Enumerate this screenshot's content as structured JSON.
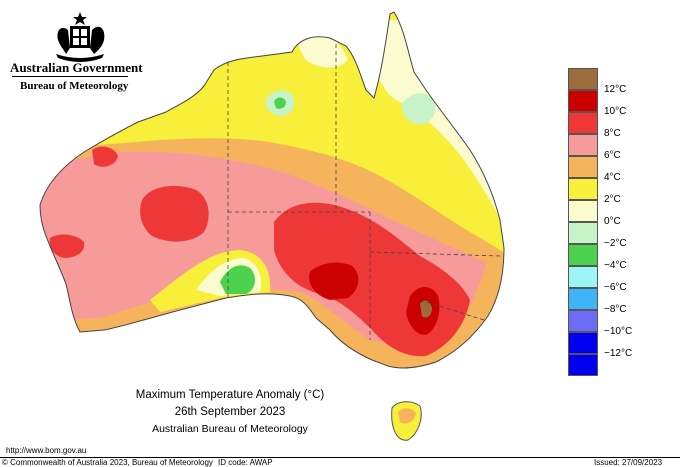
{
  "branding": {
    "government": "Australian Government",
    "bureau": "Bureau of Meteorology"
  },
  "map": {
    "title": "Maximum Temperature Anomaly (°C)",
    "date": "26th September 2023",
    "source": "Australian Bureau of Meteorology",
    "colors": {
      "above12": "#9c6c3c",
      "c10": "#cc0000",
      "c8": "#ee3838",
      "c6": "#f79a9a",
      "c4": "#f5b45c",
      "c2": "#f7ef3a",
      "c0": "#fbfbd0",
      "cm2": "#c8f2c8",
      "cm4": "#4cd24c",
      "cm6": "#9cf5f5",
      "cm8": "#3cb4f5",
      "cm10": "#6c6cf5",
      "cm12": "#0000ee"
    }
  },
  "legend": {
    "labels": [
      "12°C",
      "10°C",
      "8°C",
      "6°C",
      "4°C",
      "2°C",
      "0°C",
      "−2°C",
      "−4°C",
      "−6°C",
      "−8°C",
      "−10°C",
      "−12°C"
    ]
  },
  "footer": {
    "url": "http://www.bom.gov.au",
    "copyright": "© Commonwealth of Australia 2023, Bureau of Meteorology",
    "id_code": "ID code: AWAP",
    "issued": "Issued: 27/09/2023"
  }
}
